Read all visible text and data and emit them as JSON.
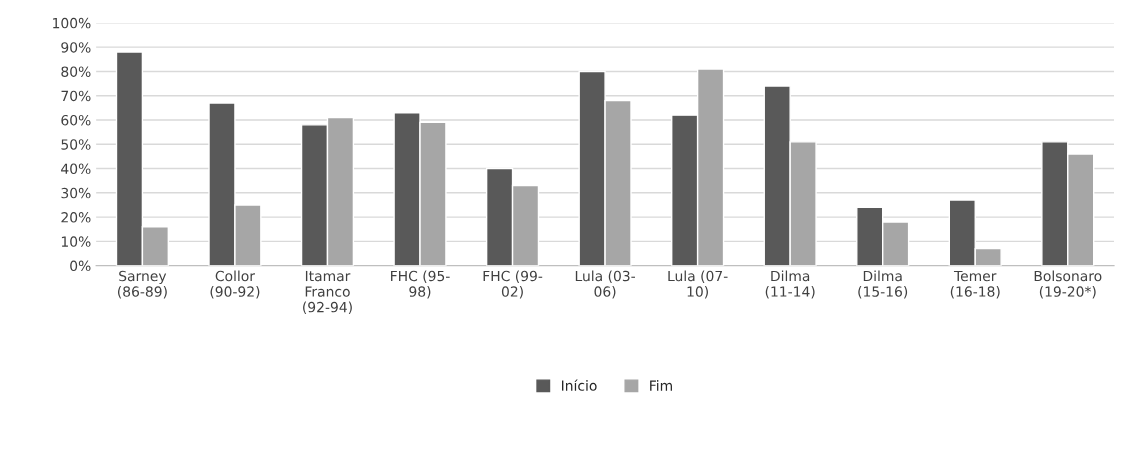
{
  "chart_data": {
    "type": "bar",
    "categories": [
      "Sarney\n(86-89)",
      "Collor\n(90-92)",
      "Itamar\nFranco\n(92-94)",
      "FHC (95-\n98)",
      "FHC (99-\n02)",
      "Lula (03-\n06)",
      "Lula (07-\n10)",
      "Dilma\n(11-14)",
      "Dilma\n(15-16)",
      "Temer\n(16-18)",
      "Bolsonaro\n(19-20*)"
    ],
    "series": [
      {
        "name": "Início",
        "color": "#595959",
        "values": [
          88,
          67,
          58,
          63,
          40,
          80,
          62,
          74,
          24,
          27,
          51
        ]
      },
      {
        "name": "Fim",
        "color": "#a6a6a6",
        "values": [
          16,
          25,
          61,
          59,
          33,
          68,
          81,
          51,
          18,
          7,
          46
        ]
      }
    ],
    "ylim": [
      0,
      100
    ],
    "yticks": [
      {
        "value": 0,
        "label": "0%"
      },
      {
        "value": 10,
        "label": "10%"
      },
      {
        "value": 20,
        "label": "20%"
      },
      {
        "value": 30,
        "label": "30%"
      },
      {
        "value": 40,
        "label": "40%"
      },
      {
        "value": 50,
        "label": "50%"
      },
      {
        "value": 60,
        "label": "60%"
      },
      {
        "value": 70,
        "label": "70%"
      },
      {
        "value": 80,
        "label": "80%"
      },
      {
        "value": 90,
        "label": "90%"
      },
      {
        "value": 100,
        "label": "100%"
      }
    ],
    "grid": "y",
    "legend": "bottom"
  }
}
